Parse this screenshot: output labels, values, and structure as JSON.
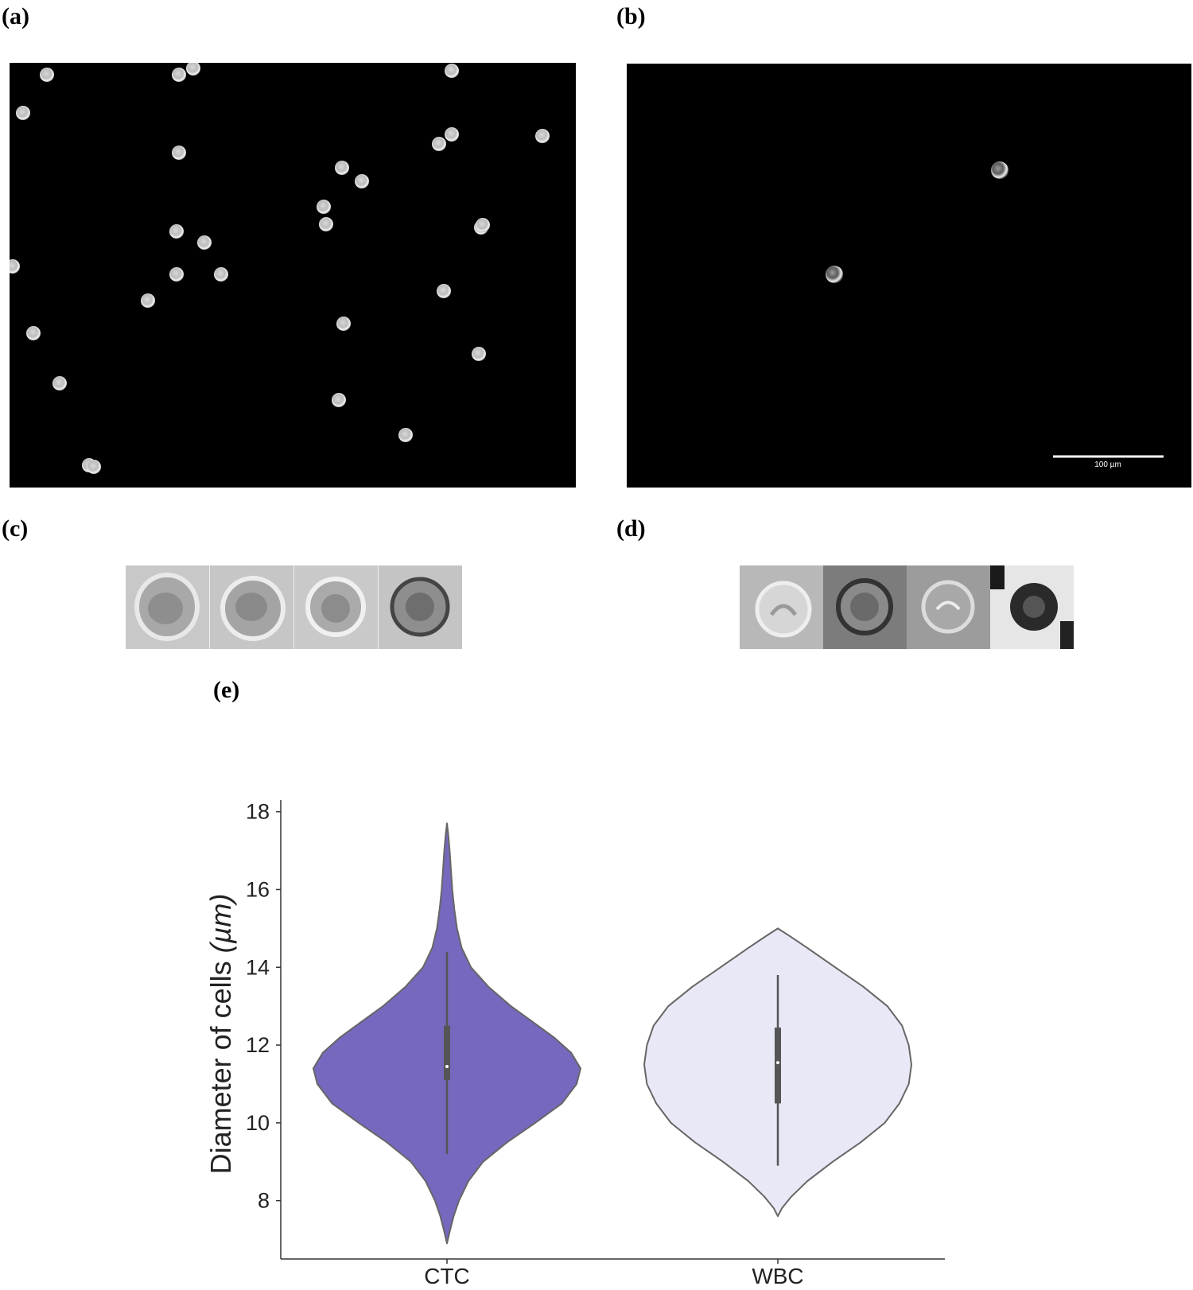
{
  "figure": {
    "panel_a": {
      "label": "(a)"
    },
    "panel_b": {
      "label": "(b)",
      "scale_bar_text": "100 µm"
    },
    "panel_c": {
      "label": "(c)"
    },
    "panel_d": {
      "label": "(d)"
    },
    "panel_e": {
      "label": "(e)"
    }
  },
  "colors": {
    "ctc_fill": "#7668be",
    "wbc_fill": "#e8e8f6",
    "outline": "#666666",
    "box": "#555555",
    "axis": "#333333",
    "micro_bg": "#000000"
  },
  "chart_data": {
    "type": "violin",
    "categories": [
      "CTC",
      "WBC"
    ],
    "ylabel": "Diameter of cells",
    "ylabel_unit": "(µm)",
    "yticks": [
      8,
      10,
      12,
      14,
      16,
      18
    ],
    "ylim": [
      6.5,
      18.3
    ],
    "grid": false,
    "legend": "none",
    "series": [
      {
        "category": "CTC",
        "color": "#7668be",
        "min": 6.9,
        "max": 17.7,
        "whisker_low": 9.2,
        "whisker_high": 14.4,
        "q1": 11.1,
        "median": 11.45,
        "q3": 12.5,
        "density": [
          [
            6.9,
            0.0
          ],
          [
            7.2,
            0.02
          ],
          [
            7.6,
            0.05
          ],
          [
            8.0,
            0.09
          ],
          [
            8.5,
            0.16
          ],
          [
            9.0,
            0.27
          ],
          [
            9.5,
            0.45
          ],
          [
            10.0,
            0.66
          ],
          [
            10.5,
            0.86
          ],
          [
            11.0,
            0.97
          ],
          [
            11.4,
            1.0
          ],
          [
            11.8,
            0.93
          ],
          [
            12.2,
            0.8
          ],
          [
            12.6,
            0.64
          ],
          [
            13.0,
            0.48
          ],
          [
            13.5,
            0.31
          ],
          [
            14.0,
            0.18
          ],
          [
            14.5,
            0.11
          ],
          [
            15.0,
            0.075
          ],
          [
            15.5,
            0.055
          ],
          [
            16.0,
            0.04
          ],
          [
            16.5,
            0.03
          ],
          [
            17.0,
            0.02
          ],
          [
            17.4,
            0.01
          ],
          [
            17.7,
            0.0
          ]
        ]
      },
      {
        "category": "WBC",
        "color": "#e8e8f6",
        "min": 7.6,
        "max": 15.0,
        "whisker_low": 8.9,
        "whisker_high": 13.8,
        "q1": 10.5,
        "median": 11.55,
        "q3": 12.45,
        "density": [
          [
            7.6,
            0.0
          ],
          [
            7.8,
            0.03
          ],
          [
            8.1,
            0.1
          ],
          [
            8.5,
            0.22
          ],
          [
            9.0,
            0.41
          ],
          [
            9.5,
            0.62
          ],
          [
            10.0,
            0.8
          ],
          [
            10.5,
            0.91
          ],
          [
            11.0,
            0.98
          ],
          [
            11.5,
            1.0
          ],
          [
            12.0,
            0.98
          ],
          [
            12.5,
            0.93
          ],
          [
            13.0,
            0.82
          ],
          [
            13.5,
            0.64
          ],
          [
            14.0,
            0.43
          ],
          [
            14.5,
            0.22
          ],
          [
            14.8,
            0.09
          ],
          [
            15.0,
            0.0
          ]
        ]
      }
    ]
  }
}
